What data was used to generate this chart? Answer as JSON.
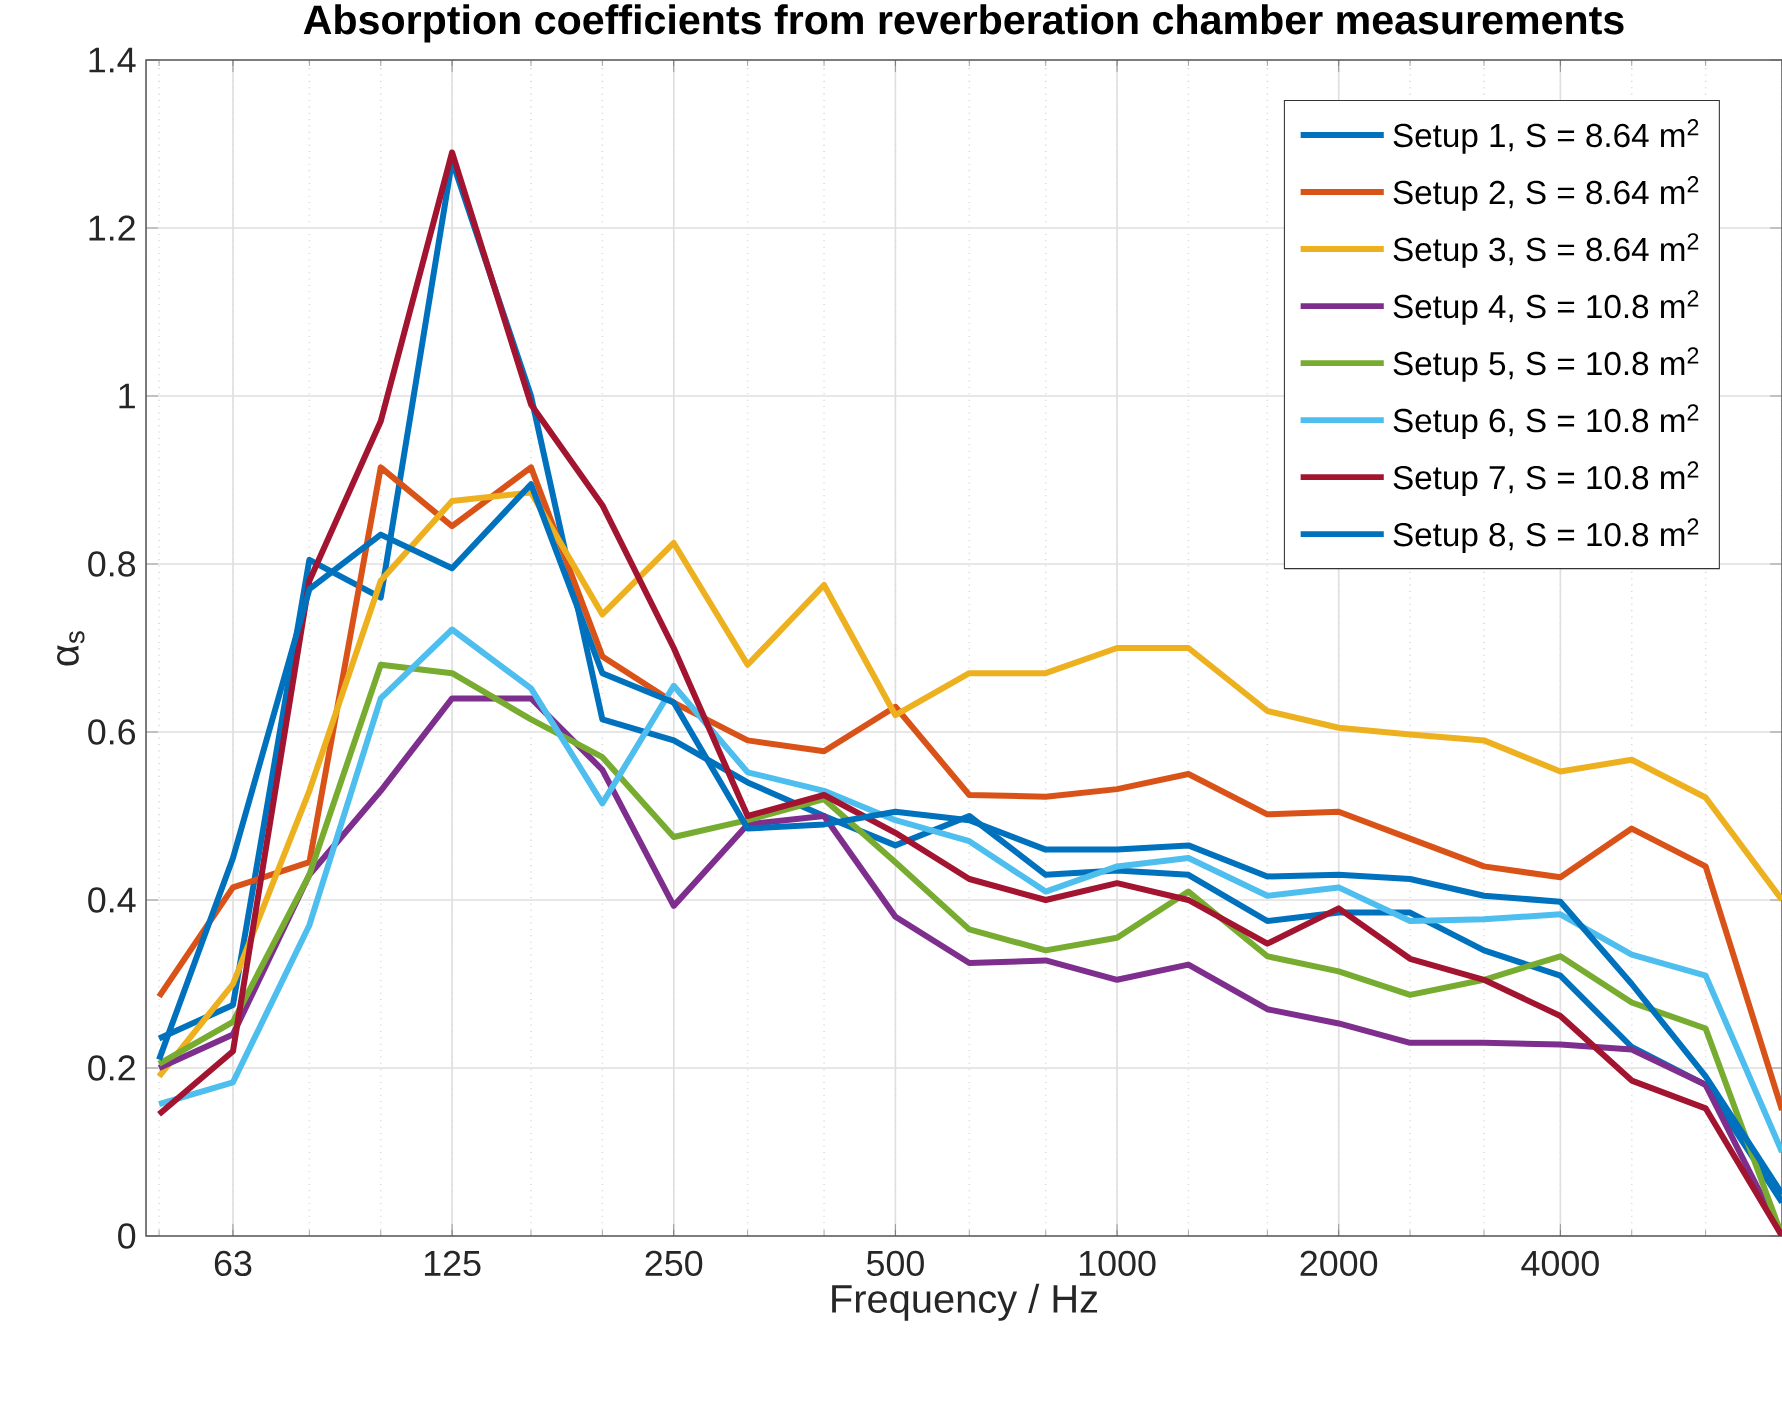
{
  "chart_data": {
    "type": "line",
    "title": "Absorption coefficients from reverberation chamber measurements",
    "xlabel": "Frequency / Hz",
    "ylabel": "α$_{s}$",
    "x": [
      50,
      63,
      80,
      100,
      125,
      160,
      200,
      250,
      315,
      400,
      500,
      630,
      800,
      1000,
      1250,
      1600,
      2000,
      2500,
      3150,
      4000,
      5000,
      6300,
      8000
    ],
    "log": "x",
    "xlim": [
      48,
      8000
    ],
    "xticks": [
      63,
      125,
      250,
      500,
      1000,
      2000,
      4000
    ],
    "ylim": [
      0,
      1.4
    ],
    "yticks": [
      0,
      0.2,
      0.4,
      0.6,
      0.8,
      1,
      1.2,
      1.4
    ],
    "grid": true,
    "legend": "top right",
    "line_style": "solid",
    "series": [
      {
        "name": "Setup 1, S = 8.64 m$^{2}$",
        "color": "#0072bd",
        "values": [
          0.235,
          0.275,
          0.805,
          0.76,
          1.28,
          1.0,
          0.615,
          0.59,
          0.54,
          0.5,
          0.465,
          0.5,
          0.43,
          0.435,
          0.43,
          0.375,
          0.385,
          0.385,
          0.34,
          0.31,
          0.225,
          0.18,
          0.04
        ]
      },
      {
        "name": "Setup 2, S = 8.64 m$^{2}$",
        "color": "#d95319",
        "values": [
          0.285,
          0.415,
          0.445,
          0.915,
          0.845,
          0.915,
          0.69,
          0.635,
          0.59,
          0.577,
          0.63,
          0.525,
          0.523,
          0.532,
          0.55,
          0.502,
          0.505,
          0.473,
          0.44,
          0.427,
          0.485,
          0.44,
          0.15
        ]
      },
      {
        "name": "Setup 3, S = 8.64 m$^{2}$",
        "color": "#edb120",
        "values": [
          0.19,
          0.3,
          0.53,
          0.78,
          0.875,
          0.885,
          0.74,
          0.825,
          0.68,
          0.775,
          0.62,
          0.67,
          0.67,
          0.7,
          0.7,
          0.625,
          0.605,
          0.597,
          0.59,
          0.553,
          0.567,
          0.522,
          0.4
        ]
      },
      {
        "name": "Setup 4, S = 10.8 m$^{2}$",
        "color": "#7e2f8e",
        "values": [
          0.2,
          0.24,
          0.43,
          0.53,
          0.64,
          0.64,
          0.555,
          0.393,
          0.49,
          0.5,
          0.38,
          0.325,
          0.328,
          0.305,
          0.323,
          0.27,
          0.253,
          0.23,
          0.23,
          0.228,
          0.222,
          0.18,
          0
        ]
      },
      {
        "name": "Setup 5, S = 10.8 m$^{2}$",
        "color": "#77ac30",
        "values": [
          0.205,
          0.255,
          0.43,
          0.68,
          0.67,
          0.615,
          0.57,
          0.475,
          0.495,
          0.52,
          0.445,
          0.365,
          0.34,
          0.355,
          0.41,
          0.333,
          0.315,
          0.287,
          0.305,
          0.333,
          0.278,
          0.247,
          0
        ]
      },
      {
        "name": "Setup 6, S = 10.8 m$^{2}$",
        "color": "#4dbeee",
        "values": [
          0.157,
          0.183,
          0.37,
          0.64,
          0.722,
          0.652,
          0.515,
          0.655,
          0.552,
          0.53,
          0.495,
          0.47,
          0.41,
          0.44,
          0.45,
          0.405,
          0.415,
          0.375,
          0.377,
          0.383,
          0.335,
          0.31,
          0.1
        ]
      },
      {
        "name": "Setup 7, S = 10.8 m$^{2}$",
        "color": "#a2142f",
        "values": [
          0.145,
          0.22,
          0.78,
          0.97,
          1.29,
          0.99,
          0.87,
          0.7,
          0.5,
          0.525,
          0.48,
          0.425,
          0.4,
          0.42,
          0.4,
          0.348,
          0.39,
          0.33,
          0.305,
          0.262,
          0.185,
          0.152,
          0
        ]
      },
      {
        "name": "Setup 8, S = 10.8 m$^{2}$",
        "color": "#0072bd",
        "values": [
          0.21,
          0.45,
          0.77,
          0.835,
          0.795,
          0.895,
          0.67,
          0.635,
          0.485,
          0.49,
          0.505,
          0.495,
          0.46,
          0.46,
          0.465,
          0.428,
          0.43,
          0.425,
          0.405,
          0.398,
          0.3,
          0.19,
          0.05
        ]
      }
    ]
  }
}
